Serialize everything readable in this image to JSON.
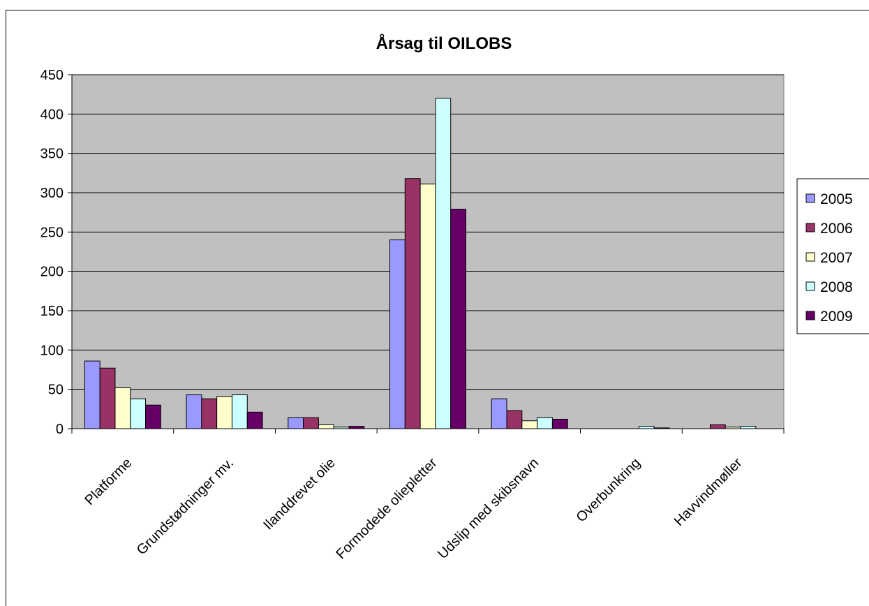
{
  "chart_data": {
    "type": "bar",
    "title": "Årsag til OILOBS",
    "xlabel": "",
    "ylabel": "",
    "ylim": [
      0,
      450
    ],
    "yticks": [
      0,
      50,
      100,
      150,
      200,
      250,
      300,
      350,
      400,
      450
    ],
    "grid": true,
    "legend_position": "right",
    "categories": [
      "Platforme",
      "Grundstødninger mv.",
      "Ilanddrevet olie",
      "Formodede oliepletter",
      "Udslip med skibsnavn",
      "Overbunkring",
      "Havvindmøller"
    ],
    "series": [
      {
        "name": "2005",
        "color": "#9999ff",
        "values": [
          86,
          43,
          14,
          240,
          38,
          0,
          0
        ]
      },
      {
        "name": "2006",
        "color": "#993366",
        "values": [
          77,
          38,
          14,
          318,
          23,
          0,
          5
        ]
      },
      {
        "name": "2007",
        "color": "#ffffcc",
        "values": [
          52,
          41,
          5,
          311,
          10,
          0,
          2
        ]
      },
      {
        "name": "2008",
        "color": "#ccffff",
        "values": [
          38,
          43,
          2,
          420,
          14,
          3,
          3
        ]
      },
      {
        "name": "2009",
        "color": "#660066",
        "values": [
          30,
          21,
          3,
          279,
          12,
          1,
          0
        ]
      }
    ],
    "plot_background": "#c0c0c0"
  }
}
